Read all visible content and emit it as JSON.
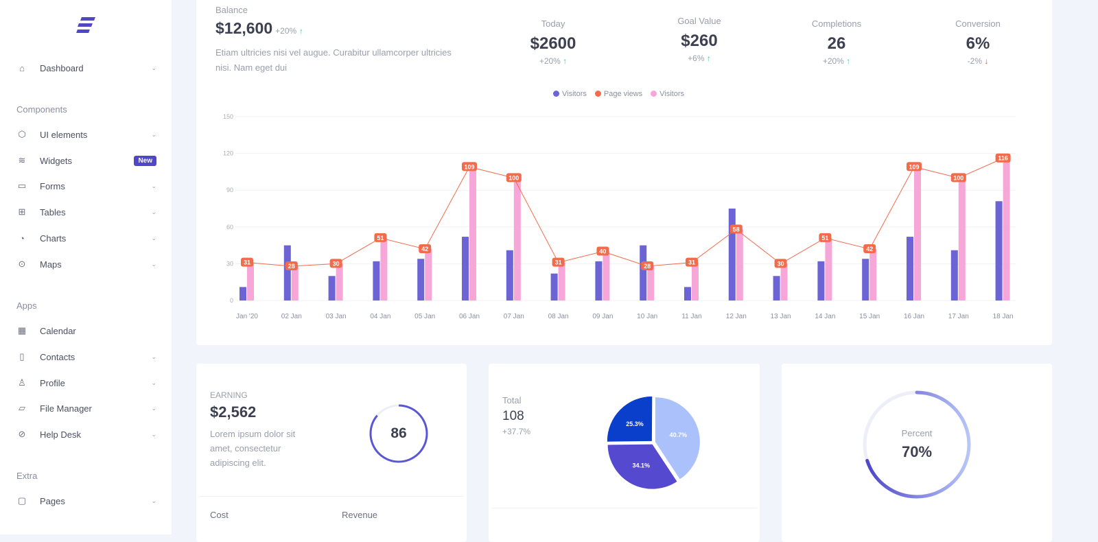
{
  "sidebar": {
    "logo": "logo",
    "sections": [
      "Components",
      "Apps",
      "Extra"
    ],
    "items": [
      {
        "label": "Dashboard",
        "icon": "home-icon",
        "chevron": true
      },
      {
        "label": "UI elements",
        "icon": "cube-icon",
        "chevron": true
      },
      {
        "label": "Widgets",
        "icon": "layers-icon",
        "badge": "New"
      },
      {
        "label": "Forms",
        "icon": "credit-card-icon",
        "chevron": true
      },
      {
        "label": "Tables",
        "icon": "grid-icon",
        "chevron": true
      },
      {
        "label": "Charts",
        "icon": "pie-chart-icon",
        "chevron": true
      },
      {
        "label": "Maps",
        "icon": "map-pin-icon",
        "chevron": true
      },
      {
        "label": "Calendar",
        "icon": "calendar-icon"
      },
      {
        "label": "Contacts",
        "icon": "book-icon",
        "chevron": true
      },
      {
        "label": "Profile",
        "icon": "user-icon",
        "chevron": true
      },
      {
        "label": "File Manager",
        "icon": "folder-icon",
        "chevron": true
      },
      {
        "label": "Help Desk",
        "icon": "compass-icon",
        "chevron": true
      },
      {
        "label": "Pages",
        "icon": "file-icon",
        "chevron": true
      }
    ]
  },
  "balance": {
    "label": "Balance",
    "value": "$12,600",
    "change": "+20%",
    "description": "Etiam ultricies nisi vel augue. Curabitur ullamcorper ultricies nisi. Nam eget dui"
  },
  "stats": [
    {
      "label": "Today",
      "value": "$2600",
      "change": "+20%",
      "trend": "up"
    },
    {
      "label": "Goal Value",
      "value": "$260",
      "change": "+6%",
      "trend": "up"
    },
    {
      "label": "Completions",
      "value": "26",
      "change": "+20%",
      "trend": "up"
    },
    {
      "label": "Conversion",
      "value": "6%",
      "change": "-2%",
      "trend": "down"
    }
  ],
  "chart_data": {
    "type": "bar",
    "categories": [
      "Jan '20",
      "02 Jan",
      "03 Jan",
      "04 Jan",
      "05 Jan",
      "06 Jan",
      "07 Jan",
      "08 Jan",
      "09 Jan",
      "10 Jan",
      "11 Jan",
      "12 Jan",
      "13 Jan",
      "14 Jan",
      "15 Jan",
      "16 Jan",
      "17 Jan",
      "18 Jan"
    ],
    "series": [
      {
        "name": "Visitors",
        "type": "bar",
        "color": "#6c63d5",
        "values": [
          11,
          45,
          20,
          32,
          34,
          52,
          41,
          22,
          32,
          45,
          11,
          75,
          20,
          32,
          34,
          52,
          41,
          81
        ]
      },
      {
        "name": "Page views",
        "type": "line",
        "color": "#f26b4b",
        "values": [
          31,
          28,
          30,
          51,
          42,
          109,
          100,
          31,
          40,
          28,
          31,
          58,
          30,
          51,
          42,
          109,
          100,
          116
        ]
      },
      {
        "name": "Visitors",
        "type": "bar",
        "color": "#f7a6d8",
        "values": [
          31,
          28,
          30,
          51,
          42,
          109,
          100,
          31,
          40,
          28,
          31,
          58,
          30,
          51,
          42,
          109,
          100,
          116
        ]
      }
    ],
    "yticks": [
      0,
      30,
      60,
      90,
      120,
      150
    ],
    "ylim": [
      0,
      150
    ],
    "grid": true,
    "legend": "top"
  },
  "earning": {
    "label": "EARNING",
    "value": "$2,562",
    "description": "Lorem ipsum dolor sit amet, consectetur adipiscing elit.",
    "ring_value": "86",
    "ring_percent": 86,
    "footer": [
      "Cost",
      "Revenue"
    ]
  },
  "total": {
    "label": "Total",
    "value": "108",
    "change": "+37.7%",
    "pie": [
      {
        "label": "40.7%",
        "value": 40.7,
        "color": "#aac1fb"
      },
      {
        "label": "34.1%",
        "value": 34.1,
        "color": "#5549cf"
      },
      {
        "label": "25.3%",
        "value": 25.3,
        "color": "#0a3fcc"
      }
    ]
  },
  "percent": {
    "label": "Percent",
    "value": "70%",
    "fraction": 0.7
  }
}
